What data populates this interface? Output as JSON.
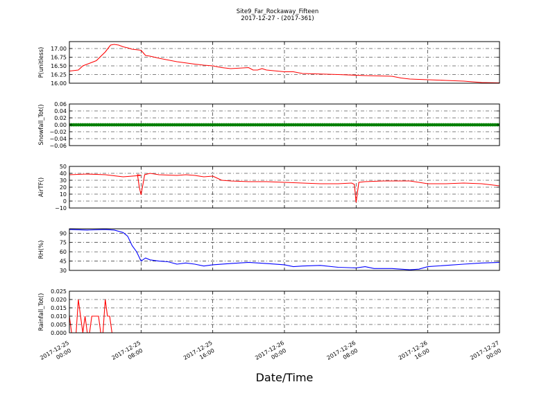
{
  "figure": {
    "title_line1": "Site9_Far_Rockaway_Fifteen",
    "title_line2": "2017-12-27 - (2017-361)",
    "xlabel": "Date/Time",
    "x_ticks": [
      {
        "d": "2017-12-25",
        "t": "00:00"
      },
      {
        "d": "2017-12-25",
        "t": "08:00"
      },
      {
        "d": "2017-12-25",
        "t": "16:00"
      },
      {
        "d": "2017-12-26",
        "t": "00:00"
      },
      {
        "d": "2017-12-26",
        "t": "08:00"
      },
      {
        "d": "2017-12-26",
        "t": "16:00"
      },
      {
        "d": "2017-12-27",
        "t": "00:00"
      }
    ],
    "x_range_hours": [
      0,
      48
    ],
    "x_grid_hours": [
      8,
      16,
      24,
      32,
      40
    ]
  },
  "chart_data": [
    {
      "type": "line",
      "ylabel": "P(unitless)",
      "color": "#ff0000",
      "ylim": [
        16.0,
        17.2
      ],
      "yticks": [
        16.0,
        16.25,
        16.5,
        16.75,
        17.0
      ],
      "ytick_labels": [
        "16.00",
        "16.25",
        "16.50",
        "16.75",
        "17.00"
      ],
      "x_hours": [
        0,
        1,
        1.5,
        2,
        3,
        4,
        4.3,
        4.6,
        5,
        5.5,
        6,
        6.5,
        7,
        8,
        8.5,
        9,
        10,
        12,
        14,
        15,
        16,
        17,
        18,
        20,
        20.5,
        21,
        21.5,
        22,
        24,
        25,
        26,
        30,
        33,
        36,
        37,
        38,
        40,
        42,
        44,
        46,
        48
      ],
      "values": [
        16.35,
        16.38,
        16.5,
        16.55,
        16.65,
        16.9,
        17.0,
        17.1,
        17.12,
        17.1,
        17.05,
        17.02,
        16.98,
        16.95,
        16.8,
        16.78,
        16.72,
        16.62,
        16.55,
        16.52,
        16.5,
        16.45,
        16.42,
        16.45,
        16.38,
        16.38,
        16.42,
        16.38,
        16.33,
        16.33,
        16.28,
        16.25,
        16.22,
        16.2,
        16.15,
        16.12,
        16.1,
        16.08,
        16.06,
        16.02,
        16.01
      ]
    },
    {
      "type": "scatter",
      "ylabel": "Snowfall_Tot()",
      "color": "#008000",
      "ylim": [
        -0.06,
        0.06
      ],
      "yticks": [
        -0.06,
        -0.04,
        -0.02,
        0.0,
        0.02,
        0.04,
        0.06
      ],
      "ytick_labels": [
        "−0.06",
        "−0.04",
        "−0.02",
        "0.00",
        "0.02",
        "0.04",
        "0.06"
      ],
      "constant_value": 0.0,
      "sample_interval_hours": 0.25
    },
    {
      "type": "line",
      "ylabel": "AirTF()",
      "color": "#ff0000",
      "ylim": [
        -10,
        50
      ],
      "yticks": [
        -10,
        0,
        10,
        20,
        30,
        40,
        50
      ],
      "ytick_labels": [
        "−10",
        "0",
        "10",
        "20",
        "30",
        "40",
        "50"
      ],
      "x_hours": [
        0,
        2,
        4,
        6,
        8,
        7.6,
        7.8,
        8,
        8.4,
        9,
        10,
        12,
        13,
        14,
        15,
        16,
        17,
        18,
        20,
        22,
        24,
        26,
        28,
        30,
        31.5,
        31.8,
        32,
        32.3,
        33,
        35,
        38,
        40,
        42,
        44,
        46,
        48
      ],
      "values": [
        38,
        39,
        38,
        35,
        37,
        38,
        20,
        9,
        38,
        40,
        38,
        37,
        38,
        37,
        35,
        36,
        30,
        29,
        28,
        28,
        27,
        26,
        25,
        25,
        26,
        24,
        -2,
        27,
        28,
        29,
        29,
        25,
        25,
        26,
        25,
        22
      ]
    },
    {
      "type": "line",
      "ylabel": "RH(%)",
      "color": "#0000ff",
      "ylim": [
        30,
        97
      ],
      "yticks": [
        30,
        45,
        60,
        75,
        90
      ],
      "ytick_labels": [
        "30",
        "45",
        "60",
        "75",
        "90"
      ],
      "x_hours": [
        0,
        2,
        4,
        5,
        6,
        6.5,
        7,
        7.5,
        8,
        8.5,
        9,
        10,
        11,
        12,
        13,
        14,
        15,
        16,
        18,
        20,
        22,
        24,
        25,
        26,
        28,
        30,
        32,
        33,
        34,
        36,
        38,
        39,
        40,
        42,
        44,
        46,
        48
      ],
      "values": [
        96,
        95,
        96,
        95,
        91,
        85,
        70,
        60,
        45,
        50,
        47,
        45,
        44,
        40,
        42,
        40,
        37,
        39,
        41,
        43,
        41,
        39,
        36,
        37,
        38,
        35,
        34,
        36,
        33,
        33,
        31,
        32,
        36,
        38,
        40,
        42,
        43
      ]
    },
    {
      "type": "line",
      "ylabel": "Rainfall_Tot()",
      "color": "#ff0000",
      "ylim": [
        0,
        0.025
      ],
      "yticks": [
        0,
        0.005,
        0.01,
        0.015,
        0.02,
        0.025
      ],
      "ytick_labels": [
        "0.000",
        "0.005",
        "0.010",
        "0.015",
        "0.020",
        "0.025"
      ],
      "x_hours": [
        0,
        0.25,
        0.5,
        0.75,
        1,
        1.25,
        1.5,
        1.75,
        2,
        2.25,
        2.5,
        2.75,
        3,
        3.25,
        3.5,
        3.75,
        4,
        4.25,
        4.5,
        4.75,
        5,
        5.25,
        5.5,
        5.75,
        6,
        6.25,
        48
      ],
      "values": [
        0.01,
        0.0,
        0.0,
        0.0,
        0.02,
        0.01,
        0.0,
        0.01,
        0.0,
        0.0,
        0.01,
        0.01,
        0.01,
        0.01,
        0.0,
        0.0,
        0.02,
        0.01,
        0.01,
        0.0,
        0.0,
        0.0,
        0.0,
        0.0,
        0.0,
        0.0,
        0.0
      ]
    }
  ]
}
